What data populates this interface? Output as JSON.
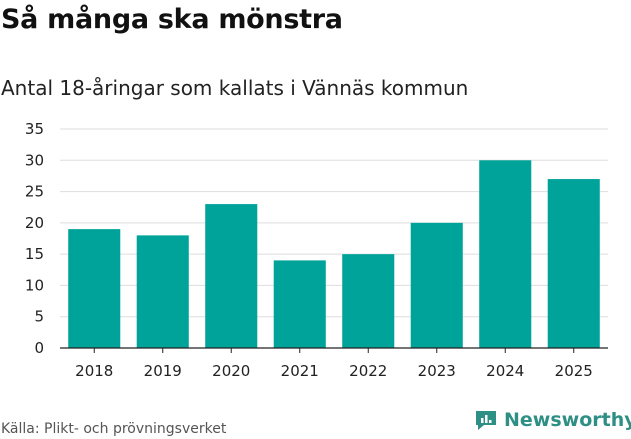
{
  "title": "Så många ska mönstra",
  "subtitle": "Antal 18-åringar som kallats i Vännäs kommun",
  "source": "Källa: Plikt- och prövningsverket",
  "brand": {
    "name": "Newsworthy",
    "icon": "newsworthy-logo-icon"
  },
  "colors": {
    "bar": "#00a39a",
    "grid": "#dddddd",
    "axis": "#222222",
    "brand": "#2e8f85"
  },
  "chart_data": {
    "type": "bar",
    "categories": [
      "2018",
      "2019",
      "2020",
      "2021",
      "2022",
      "2023",
      "2024",
      "2025"
    ],
    "values": [
      19,
      18,
      23,
      14,
      15,
      20,
      30,
      27
    ],
    "yticks": [
      0,
      5,
      10,
      15,
      20,
      25,
      30,
      35
    ],
    "ylim": [
      0,
      35
    ],
    "grid": true,
    "title": "Så många ska mönstra",
    "subtitle": "Antal 18-åringar som kallats i Vännäs kommun",
    "xlabel": "",
    "ylabel": ""
  }
}
